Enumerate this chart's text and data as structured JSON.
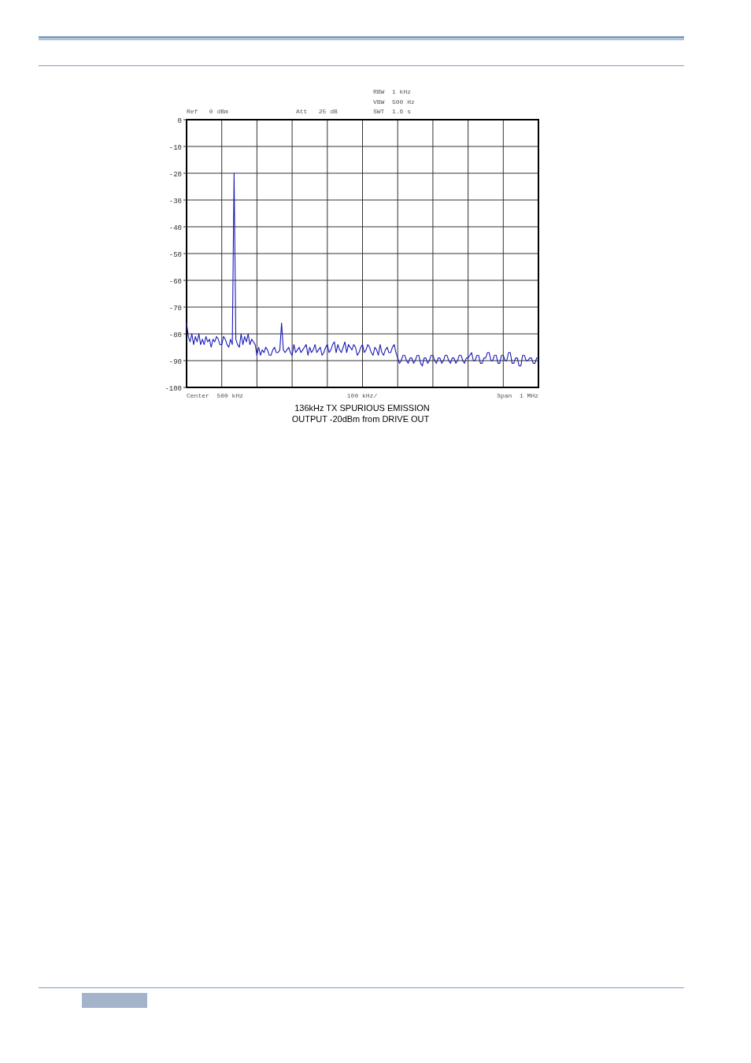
{
  "chart_data": {
    "type": "line",
    "title": "136kHz TX SPURIOUS EMISSION",
    "subtitle": "OUTPUT -20dBm from DRIVE OUT",
    "annotations": [
      "Ref   0 dBm",
      "Att   25 dB",
      "RBW  1 kHz",
      "VBW  500 Hz",
      "SWT  1.6 s",
      "Center  500 kHz",
      "100 kHz/",
      "Span  1 MHz"
    ],
    "categories": [
      null,
      null,
      null,
      null,
      null,
      null,
      null,
      null,
      null,
      null,
      null,
      null,
      null,
      null,
      null,
      null,
      null,
      null,
      null,
      null,
      null,
      null,
      null,
      null,
      null,
      null,
      null,
      null,
      null,
      null,
      null,
      null,
      null,
      null,
      null,
      null,
      null,
      null,
      null,
      null,
      null,
      null,
      null,
      null,
      null,
      null,
      null,
      null,
      null,
      null,
      null,
      null,
      null,
      null,
      null,
      null,
      null,
      null,
      null,
      null,
      null,
      null,
      null,
      null,
      null,
      null,
      null,
      null,
      null,
      null,
      null,
      null,
      null,
      null,
      null,
      null,
      null,
      null,
      null,
      null,
      null,
      null,
      null,
      null,
      null,
      null,
      null,
      null,
      null,
      null,
      null,
      null,
      null,
      null,
      null,
      null,
      null,
      null,
      null,
      null,
      null,
      null,
      null,
      null,
      null,
      null,
      null,
      null,
      null,
      null,
      null,
      null,
      null,
      null,
      null,
      null,
      null,
      null,
      null,
      null,
      null,
      null,
      null,
      null,
      null,
      null,
      null,
      null,
      null,
      null,
      null,
      null,
      null,
      null,
      null,
      null,
      null,
      null,
      null,
      null,
      null,
      null,
      null,
      null,
      null,
      null,
      null,
      null,
      null,
      null,
      null,
      null,
      null,
      null,
      null,
      null,
      null,
      null,
      null,
      null,
      null,
      null,
      null,
      null,
      null,
      null,
      null,
      null,
      null,
      null,
      null,
      null,
      null,
      null,
      null,
      null,
      null,
      null,
      null,
      null,
      null,
      null,
      null,
      null,
      null,
      null,
      null,
      null,
      null,
      null,
      null,
      null,
      null,
      null,
      null,
      null,
      null,
      null,
      null,
      null,
      null
    ],
    "ylim": [
      -100,
      0
    ],
    "yticks": [
      -100,
      -90,
      -80,
      -70,
      -60,
      -50,
      -40,
      -30,
      -20,
      -10,
      0
    ],
    "tick_labels": "y",
    "grid": true,
    "line_style": "solid",
    "series": [
      {
        "color": "#1a1ab8",
        "values": [
          -76,
          -81,
          -83,
          -80,
          -84,
          -81,
          -83,
          -80,
          -84,
          -82,
          -84,
          -81,
          -83,
          -82,
          -85,
          -82,
          -83,
          -81,
          -82,
          -84,
          -84,
          -81,
          -82,
          -84,
          -85,
          -82,
          -84,
          -20,
          -82,
          -84,
          -85,
          -80,
          -84,
          -81,
          -83,
          -80,
          -84,
          -82,
          -83,
          -84,
          -88,
          -85,
          -88,
          -86,
          -87,
          -85,
          -86,
          -88,
          -88,
          -86,
          -85,
          -87,
          -87,
          -86,
          -76,
          -86,
          -87,
          -86,
          -85,
          -87,
          -88,
          -84,
          -87,
          -86,
          -85,
          -87,
          -86,
          -85,
          -84,
          -88,
          -85,
          -87,
          -86,
          -84,
          -87,
          -86,
          -85,
          -88,
          -87,
          -85,
          -84,
          -87,
          -86,
          -84,
          -83,
          -87,
          -84,
          -86,
          -87,
          -85,
          -83,
          -87,
          -84,
          -85,
          -86,
          -84,
          -85,
          -88,
          -87,
          -85,
          -84,
          -87,
          -86,
          -84,
          -85,
          -87,
          -88,
          -85,
          -86,
          -88,
          -84,
          -87,
          -88,
          -86,
          -85,
          -87,
          -87,
          -85,
          -84,
          -87,
          -89,
          -91,
          -90,
          -88,
          -88,
          -90,
          -91,
          -89,
          -89,
          -91,
          -90,
          -88,
          -88,
          -91,
          -92,
          -89,
          -89,
          -91,
          -90,
          -88,
          -88,
          -90,
          -91,
          -89,
          -89,
          -91,
          -90,
          -88,
          -88,
          -90,
          -91,
          -89,
          -89,
          -91,
          -90,
          -88,
          -88,
          -90,
          -91,
          -89,
          -89,
          -88,
          -87,
          -90,
          -90,
          -88,
          -88,
          -91,
          -91,
          -89,
          -89,
          -87,
          -87,
          -90,
          -90,
          -88,
          -88,
          -91,
          -91,
          -88,
          -88,
          -90,
          -90,
          -87,
          -87,
          -91,
          -91,
          -89,
          -89,
          -92,
          -92,
          -88,
          -88,
          -90,
          -90,
          -89,
          -89,
          -91,
          -91,
          -89,
          -89
        ]
      }
    ]
  }
}
